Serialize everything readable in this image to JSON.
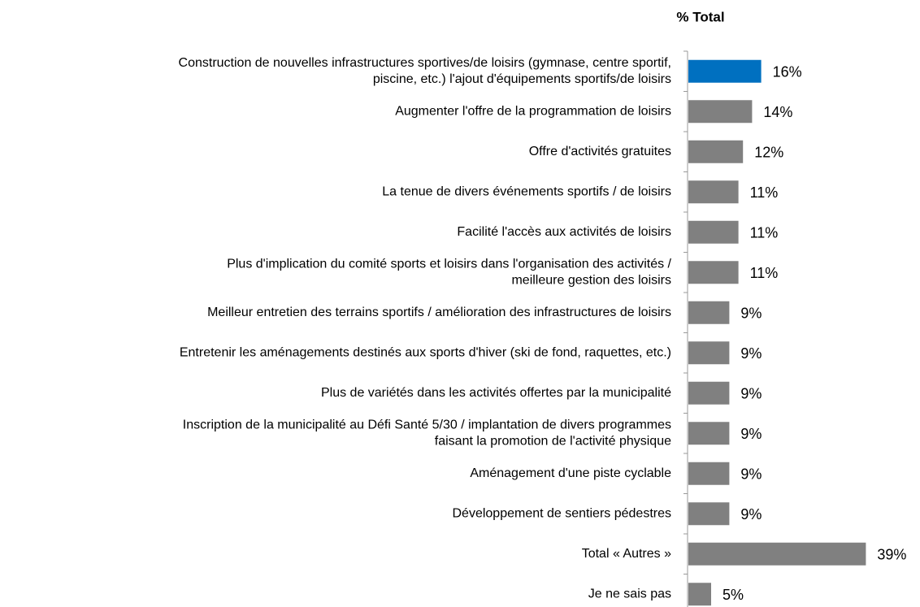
{
  "chart_data": {
    "type": "hbar",
    "title": "% Total",
    "categories": [
      "Construction de nouvelles infrastructures sportives/de loisirs (gymnase, centre sportif,\npiscine, etc.) l'ajout d'équipements sportifs/de loisirs",
      "Augmenter l'offre de la programmation de loisirs",
      "Offre d'activités gratuites",
      "La tenue de divers événements sportifs / de loisirs",
      "Facilité l'accès aux activités de loisirs",
      "Plus d'implication du comité sports et loisirs dans l'organisation des activités /\nmeilleure gestion des loisirs",
      "Meilleur entretien des terrains sportifs / amélioration des infrastructures de loisirs",
      "Entretenir les aménagements destinés aux sports d'hiver (ski de fond, raquettes, etc.)",
      "Plus de variétés dans les activités offertes par la municipalité",
      "Inscription de la municipalité au Défi Santé 5/30 / implantation de divers programmes\nfaisant la promotion de l'activité physique",
      "Aménagement d'une piste cyclable",
      "Développement de sentiers pédestres",
      "Total « Autres »",
      "Je ne sais pas"
    ],
    "values": [
      16,
      14,
      12,
      11,
      11,
      11,
      9,
      9,
      9,
      9,
      9,
      9,
      39,
      5
    ],
    "value_labels": [
      "16%",
      "14%",
      "12%",
      "11%",
      "11%",
      "11%",
      "9%",
      "9%",
      "9%",
      "9%",
      "9%",
      "9%",
      "39%",
      "5%"
    ],
    "colors": [
      "#0070c0",
      "#808080",
      "#808080",
      "#808080",
      "#808080",
      "#808080",
      "#808080",
      "#808080",
      "#808080",
      "#808080",
      "#808080",
      "#808080",
      "#808080",
      "#808080"
    ]
  }
}
